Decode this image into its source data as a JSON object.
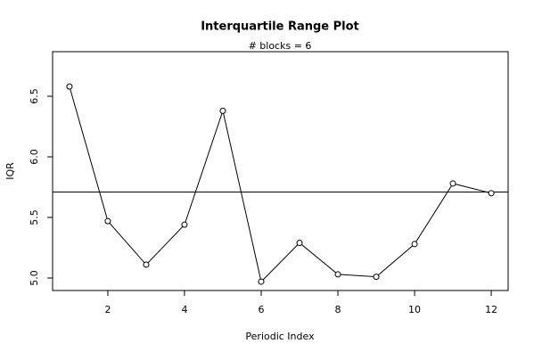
{
  "chart_data": {
    "type": "line",
    "title": "Interquartile Range Plot",
    "subtitle": "# blocks =  6",
    "x_label": "Periodic Index",
    "y_label": "IQR",
    "x": [
      1,
      2,
      3,
      4,
      5,
      6,
      7,
      8,
      9,
      10,
      11,
      12
    ],
    "values": [
      6.58,
      5.47,
      5.11,
      5.44,
      6.38,
      4.97,
      5.29,
      5.03,
      5.01,
      5.28,
      5.78,
      5.7
    ],
    "reference_line": 5.71,
    "color": "#000000",
    "xlim": [
      0.56,
      12.44
    ],
    "xticks": [
      2,
      4,
      6,
      8,
      10,
      12
    ],
    "ylim": [
      4.897,
      6.868
    ],
    "yticks": [
      {
        "value": 5.0,
        "label": "5.0"
      },
      {
        "value": 5.5,
        "label": "5.5"
      },
      {
        "value": 6.0,
        "label": "6.0"
      },
      {
        "value": 6.5,
        "label": "6.5"
      }
    ]
  }
}
